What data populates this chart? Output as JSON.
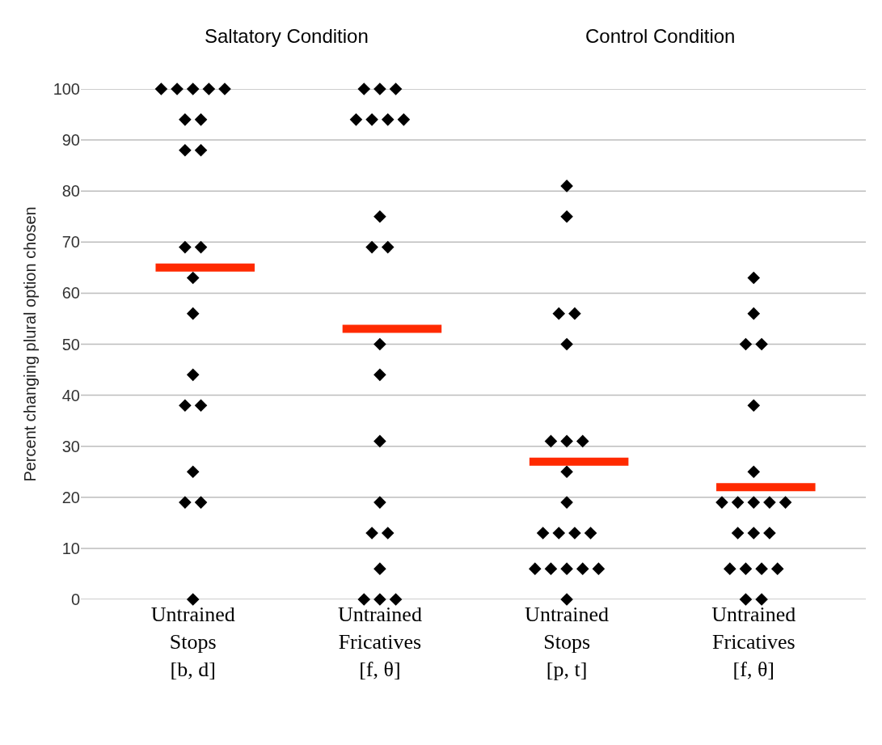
{
  "chart_data": {
    "type": "scatter",
    "categories": [
      "Untrained\nStops\n[b, d]",
      "Untrained\nFricatives\n[f, θ]",
      "Untrained\nStops\n[p, t]",
      "Untrained\nFricatives\n[f, θ]"
    ],
    "ylabel": "Percent changing plural option chosen",
    "annotations": [
      "Saltatory Condition",
      "Control Condition"
    ],
    "ylim": [
      0,
      100
    ],
    "yticks": [
      0,
      10,
      20,
      30,
      40,
      50,
      60,
      70,
      80,
      90,
      100
    ],
    "grid": "y",
    "series": [
      {
        "marker": "diamond",
        "color": "#000000",
        "values": [
          100,
          100,
          81,
          63
        ]
      },
      {
        "marker": "diamond",
        "color": "#000000",
        "values": [
          100,
          100,
          75,
          56
        ]
      },
      {
        "marker": "diamond",
        "color": "#000000",
        "values": [
          100,
          100,
          56,
          50
        ]
      },
      {
        "marker": "diamond",
        "color": "#000000",
        "values": [
          100,
          94,
          56,
          50
        ]
      },
      {
        "marker": "diamond",
        "color": "#000000",
        "values": [
          100,
          94,
          50,
          38
        ]
      },
      {
        "marker": "diamond",
        "color": "#000000",
        "values": [
          94,
          94,
          31,
          25
        ]
      },
      {
        "marker": "diamond",
        "color": "#000000",
        "values": [
          94,
          94,
          31,
          19
        ]
      },
      {
        "marker": "diamond",
        "color": "#000000",
        "values": [
          88,
          75,
          31,
          19
        ]
      },
      {
        "marker": "diamond",
        "color": "#000000",
        "values": [
          88,
          69,
          25,
          19
        ]
      },
      {
        "marker": "diamond",
        "color": "#000000",
        "values": [
          69,
          69,
          19,
          19
        ]
      },
      {
        "marker": "diamond",
        "color": "#000000",
        "values": [
          69,
          50,
          13,
          19
        ]
      },
      {
        "marker": "diamond",
        "color": "#000000",
        "values": [
          63,
          44,
          13,
          13
        ]
      },
      {
        "marker": "diamond",
        "color": "#000000",
        "values": [
          56,
          31,
          13,
          13
        ]
      },
      {
        "marker": "diamond",
        "color": "#000000",
        "values": [
          44,
          19,
          13,
          13
        ]
      },
      {
        "marker": "diamond",
        "color": "#000000",
        "values": [
          38,
          13,
          6,
          6
        ]
      },
      {
        "marker": "diamond",
        "color": "#000000",
        "values": [
          38,
          13,
          6,
          6
        ]
      },
      {
        "marker": "diamond",
        "color": "#000000",
        "values": [
          25,
          6,
          6,
          6
        ]
      },
      {
        "marker": "diamond",
        "color": "#000000",
        "values": [
          19,
          0,
          6,
          6
        ]
      },
      {
        "marker": "diamond",
        "color": "#000000",
        "values": [
          19,
          0,
          6,
          0
        ]
      },
      {
        "marker": "diamond",
        "color": "#000000",
        "values": [
          0,
          0,
          0,
          0
        ]
      }
    ],
    "ref_lines": [
      {
        "axis": "y",
        "value": 65,
        "color": "#ff2a00"
      },
      {
        "axis": "y",
        "value": 53,
        "color": "#ff2a00"
      },
      {
        "axis": "y",
        "value": 27,
        "color": "#ff2a00"
      },
      {
        "axis": "y",
        "value": 22,
        "color": "#ff2a00"
      }
    ]
  }
}
